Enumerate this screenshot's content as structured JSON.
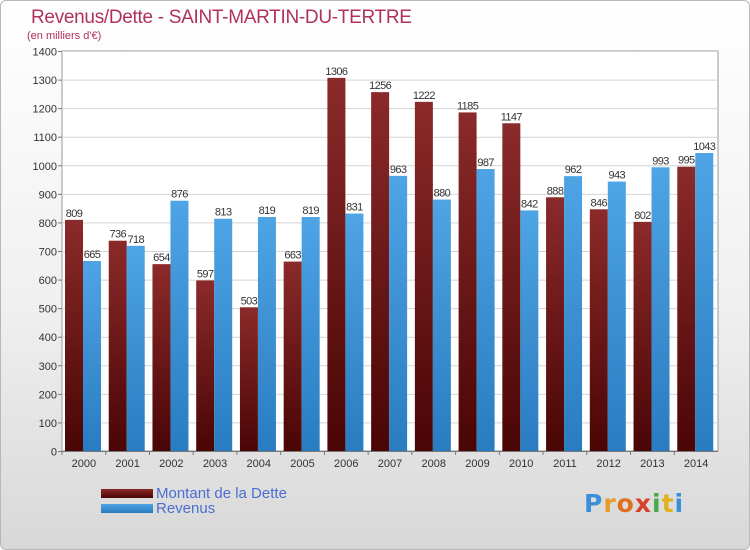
{
  "colors": {
    "debt": "#8b2a2a",
    "debt_dark": "#4a0505",
    "revenue": "#4ea4e4",
    "revenue_dark": "#2a7cc0",
    "title": "#b03060",
    "legend_text": "#4a6fd0"
  },
  "chart_data": {
    "type": "bar",
    "title": "Revenus/Dette - SAINT-MARTIN-DU-TERTRE",
    "subtitle": "(en milliers d'€)",
    "categories": [
      "2000",
      "2001",
      "2002",
      "2003",
      "2004",
      "2005",
      "2006",
      "2007",
      "2008",
      "2009",
      "2010",
      "2011",
      "2012",
      "2013",
      "2014"
    ],
    "series": [
      {
        "name": "Montant de la Dette",
        "values": [
          809,
          736,
          654,
          597,
          503,
          663,
          1306,
          1256,
          1222,
          1185,
          1147,
          888,
          846,
          802,
          995
        ]
      },
      {
        "name": "Revenus",
        "values": [
          665,
          718,
          876,
          813,
          819,
          819,
          831,
          963,
          880,
          987,
          842,
          962,
          943,
          993,
          1043
        ]
      }
    ],
    "y_ticks": [
      0,
      100,
      200,
      300,
      400,
      500,
      600,
      700,
      800,
      900,
      1000,
      1100,
      1200,
      1300,
      1400
    ],
    "ylim": [
      0,
      1400
    ],
    "grid": true,
    "legend_position": "bottom-left"
  },
  "brand": {
    "letters": [
      "P",
      "r",
      "o",
      "x",
      "i",
      "t",
      "i"
    ],
    "colors": [
      "#3a8fd8",
      "#e89a2a",
      "#e07020",
      "#d8402a",
      "#4aa84a",
      "#e0b020",
      "#3a8fd8"
    ]
  }
}
